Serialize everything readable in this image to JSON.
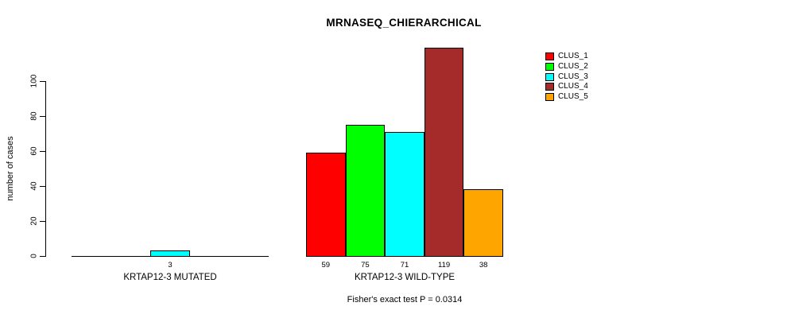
{
  "chart_data": {
    "type": "bar",
    "title": "MRNASEQ_CHIERARCHICAL",
    "ylabel": "number of cases",
    "xlabel": "",
    "ylim": [
      0,
      100
    ],
    "y_ticks": [
      0,
      20,
      40,
      60,
      80,
      100
    ],
    "grid": false,
    "categories": [
      "CLUS_1",
      "CLUS_2",
      "CLUS_3",
      "CLUS_4",
      "CLUS_5"
    ],
    "palette": [
      "#FF0000",
      "#00FF00",
      "#00FFFF",
      "#A52A2A",
      "#FFA500"
    ],
    "groups": [
      {
        "label": "KRTAP12-3 MUTATED",
        "values": [
          0,
          0,
          3,
          0,
          0
        ],
        "value_labels": [
          "",
          "",
          "3",
          "",
          ""
        ]
      },
      {
        "label": "KRTAP12-3 WILD-TYPE",
        "values": [
          59,
          75,
          71,
          119,
          38
        ],
        "value_labels": [
          "59",
          "75",
          "71",
          "119",
          "38"
        ]
      }
    ],
    "legend": {
      "position": "top-right",
      "entries": [
        {
          "label": "CLUS_1",
          "color": "#FF0000"
        },
        {
          "label": "CLUS_2",
          "color": "#00FF00"
        },
        {
          "label": "CLUS_3",
          "color": "#00FFFF"
        },
        {
          "label": "CLUS_4",
          "color": "#A52A2A"
        },
        {
          "label": "CLUS_5",
          "color": "#FFA500"
        }
      ]
    },
    "footnote": "Fisher's exact test P = 0.0314"
  }
}
